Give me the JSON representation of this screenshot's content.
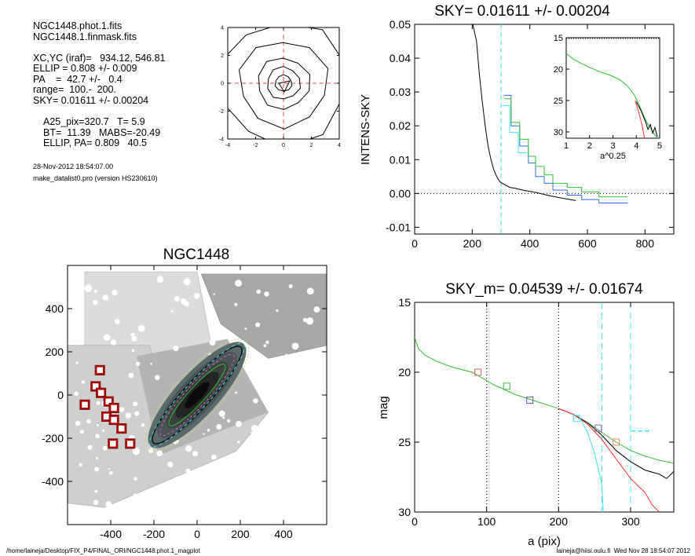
{
  "info": {
    "lines_main": [
      "NGC1448.phot.1.fits",
      "NGC1448.1.finmask.fits",
      "",
      "XC,YC (iraf)=   934.12, 546.81",
      "ELLIP = 0.808 +/- 0.009",
      "PA    =  42.7 +/-   0.4",
      "range=  100.-  200.",
      "SKY= 0.01611 +/- 0.00204"
    ],
    "lines_phot": [
      "A25_pix=320.7   T= 5.9",
      "BT=  11.39   MABS=-20.49",
      "ELLIP, PA= 0.809   40.5"
    ],
    "timestamp": "28-Nov-2012 18:54:07.00",
    "program": "make_datalist0.pro (version HS230610)"
  },
  "footer": {
    "path": "/home/laineja/Desktop/FIX_P4/FINAL_ORI/NGC1448.phot.1_magplot",
    "user": "laineja@hiisi.oulu.fi  Wed Nov 28 18:54:07 2012"
  },
  "chart_data": [
    {
      "type": "line",
      "name": "centering-contours",
      "xlim": [
        -4,
        4
      ],
      "ylim": [
        -4,
        4
      ],
      "xticks": [
        "-4",
        "-2",
        "0",
        "2",
        "4"
      ],
      "yticks": [
        "-4",
        "-2",
        "0",
        "2",
        "4"
      ],
      "contour_radii": [
        0.6,
        1.2,
        1.9,
        3.2,
        4.6
      ],
      "center": [
        0,
        0
      ],
      "colors": {
        "contour": "#000000",
        "crosshair": "#ff4040"
      }
    },
    {
      "type": "line",
      "title": "SKY= 0.01611 +/- 0.00204",
      "xlabel": "",
      "ylabel": "INTENS-SKY",
      "xlim": [
        0,
        900
      ],
      "ylim": [
        -0.012,
        0.05
      ],
      "xticks": [
        "0",
        "200",
        "400",
        "600",
        "800"
      ],
      "yticks": [
        "0.05",
        "0.04",
        "0.03",
        "0.02",
        "0.01",
        "0.00",
        "-0.01"
      ],
      "zero_line": 0,
      "sky_radius_marker": 300,
      "series": [
        {
          "color": "#000000",
          "x": [
            202,
            215,
            225,
            235,
            245,
            255,
            265,
            275,
            285,
            295,
            305,
            315,
            330,
            350,
            380,
            420,
            460,
            500,
            540,
            560
          ],
          "y": [
            0.05,
            0.045,
            0.035,
            0.027,
            0.02,
            0.014,
            0.01,
            0.007,
            0.005,
            0.0035,
            0.003,
            0.0025,
            0.0018,
            0.0015,
            0.0009,
            0.0003,
            -0.0005,
            -0.0012,
            -0.0018,
            -0.0021
          ]
        },
        {
          "color": "#2a6fe0",
          "x": [
            310,
            335,
            335,
            365,
            365,
            395,
            395,
            420,
            420,
            450,
            450,
            480,
            480,
            530,
            530,
            580,
            580,
            640,
            640,
            740
          ],
          "y": [
            0.029,
            0.029,
            0.02,
            0.02,
            0.014,
            0.014,
            0.009,
            0.009,
            0.005,
            0.005,
            0.003,
            0.003,
            0.001,
            0.001,
            -0.0005,
            -0.0005,
            -0.0018,
            -0.0018,
            -0.0028,
            -0.0028
          ]
        },
        {
          "color": "#30c030",
          "x": [
            310,
            335,
            335,
            365,
            365,
            395,
            395,
            420,
            420,
            450,
            450,
            480,
            480,
            530,
            530,
            580,
            580,
            640,
            640,
            740
          ],
          "y": [
            0.028,
            0.028,
            0.021,
            0.021,
            0.016,
            0.016,
            0.011,
            0.011,
            0.008,
            0.008,
            0.0055,
            0.0055,
            0.003,
            0.003,
            0.0018,
            0.0018,
            0.0005,
            0.0005,
            -0.001,
            -0.001
          ]
        },
        {
          "color": "#40e0f0",
          "x": [
            305,
            330,
            330,
            360,
            360,
            390
          ],
          "y": [
            0.026,
            0.026,
            0.018,
            0.018,
            0.012,
            0.012
          ]
        }
      ],
      "inset": {
        "xlabel": "a^0.25",
        "xlim": [
          1,
          5
        ],
        "ylim": [
          15,
          31
        ],
        "xticks": [
          "1",
          "2",
          "3",
          "4",
          "5"
        ],
        "yticks": [
          "15",
          "20",
          "25",
          "30"
        ],
        "series": [
          {
            "color": "#30c030",
            "x": [
              1.0,
              1.3,
              1.7,
              2.1,
              2.5,
              2.9,
              3.3,
              3.6,
              3.9,
              4.1,
              4.3,
              4.5,
              4.7,
              4.9
            ],
            "y": [
              17.5,
              18.4,
              19.2,
              19.9,
              20.5,
              21.0,
              21.7,
              22.6,
              24.0,
              25.5,
              27.3,
              28.8,
              30.0,
              31.0
            ]
          },
          {
            "color": "#000000",
            "x": [
              4.0,
              4.2,
              4.4,
              4.5,
              4.6,
              4.7,
              4.8,
              4.9
            ],
            "y": [
              25.2,
              26.6,
              28.4,
              29.6,
              28.8,
              30.2,
              29.3,
              30.8
            ]
          },
          {
            "color": "#ff3030",
            "x": [
              3.95,
              4.1,
              4.25,
              4.35
            ],
            "y": [
              25.0,
              26.8,
              29.0,
              31.0
            ]
          }
        ]
      }
    },
    {
      "type": "heatmap",
      "title": "NGC1448",
      "xlim": [
        -600,
        600
      ],
      "ylim": [
        -600,
        600
      ],
      "xticks": [
        "-400",
        "-200",
        "0",
        "200",
        "400"
      ],
      "yticks": [
        "400",
        "200",
        "0",
        "-200",
        "-400"
      ],
      "galaxy_center": [
        0,
        0
      ],
      "galaxy_pa_deg": 42.7,
      "isophote_semi_axes": [
        320,
        260,
        200,
        140,
        80
      ],
      "ellipse_ratio": 0.192,
      "mask_boxes": [
        [
          -450,
          115
        ],
        [
          -470,
          40
        ],
        [
          -445,
          10
        ],
        [
          -410,
          -30
        ],
        [
          -385,
          -60
        ],
        [
          -520,
          -45
        ],
        [
          -420,
          -100
        ],
        [
          -385,
          -115
        ],
        [
          -350,
          -155
        ],
        [
          -390,
          -225
        ],
        [
          -310,
          -225
        ]
      ],
      "colors": {
        "mask_box": "#b00000",
        "galaxy_core": "#000000",
        "isophote": "#30c030"
      }
    },
    {
      "type": "line",
      "title": "SKY_m=  0.04539 +/- 0.01674",
      "xlabel": "a (pix)",
      "ylabel": "mag",
      "xlim": [
        0,
        360
      ],
      "ylim": [
        15,
        30
      ],
      "xticks": [
        "0",
        "100",
        "200",
        "300"
      ],
      "yticks": [
        "15",
        "20",
        "25",
        "30"
      ],
      "vlines_dotted": [
        100,
        200
      ],
      "vlines_dashed_cyan": [
        260,
        300
      ],
      "series": [
        {
          "color": "#30c030",
          "x": [
            0,
            5,
            15,
            30,
            50,
            80,
            110,
            140,
            170,
            200,
            220,
            240,
            260,
            280,
            300,
            320,
            340,
            360
          ],
          "y": [
            17.5,
            18.3,
            18.8,
            19.2,
            19.6,
            20.0,
            20.9,
            21.6,
            22.1,
            22.6,
            23.0,
            23.6,
            24.3,
            25.0,
            25.6,
            26.0,
            26.3,
            26.5
          ]
        },
        {
          "color": "#000000",
          "x": [
            200,
            220,
            240,
            260,
            280,
            300,
            320,
            340,
            350,
            360
          ],
          "y": [
            22.6,
            23.0,
            23.6,
            24.5,
            25.6,
            26.4,
            27.0,
            27.3,
            27.6,
            27.1
          ]
        },
        {
          "color": "#ff3030",
          "x": [
            200,
            220,
            240,
            260,
            280,
            300,
            320,
            330,
            340
          ],
          "y": [
            22.6,
            23.0,
            23.7,
            24.8,
            26.2,
            27.6,
            28.6,
            29.5,
            30.0
          ]
        },
        {
          "color": "#40e0f0",
          "x": [
            230,
            240,
            250,
            260,
            262
          ],
          "y": [
            23.3,
            24.3,
            25.8,
            28.0,
            30.0
          ]
        }
      ],
      "markers": [
        {
          "x": 88,
          "y": 20.0,
          "color": "#e06060"
        },
        {
          "x": 128,
          "y": 21.0,
          "color": "#40c040"
        },
        {
          "x": 160,
          "y": 22.0,
          "color": "#6050c0"
        },
        {
          "x": 225,
          "y": 23.3,
          "color": "#40e0f0"
        },
        {
          "x": 255,
          "y": 24.0,
          "color": "#a060c0"
        },
        {
          "x": 280,
          "y": 25.0,
          "color": "#e08060"
        }
      ],
      "dashed_level": {
        "x0": 300,
        "x1": 330,
        "y": 24.2,
        "color": "#40e0f0"
      }
    }
  ]
}
